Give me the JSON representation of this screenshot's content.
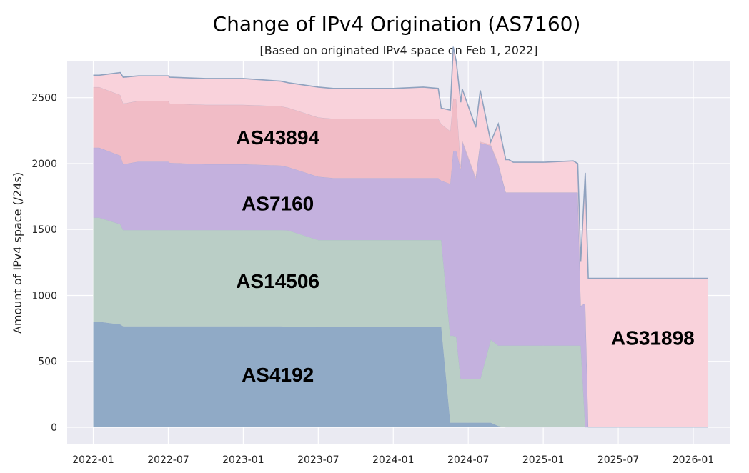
{
  "chart_data": {
    "type": "area",
    "title": "Change of IPv4 Origination (AS7160)",
    "subtitle": "[Based on originated IPv4 space on Feb 1, 2022]",
    "xlabel": "",
    "ylabel": "Amount of IPv4 space (/24s)",
    "x_ticks": [
      "2022-01",
      "2022-07",
      "2023-01",
      "2023-07",
      "2024-01",
      "2024-07",
      "2025-01",
      "2025-07",
      "2026-01"
    ],
    "y_ticks": [
      0,
      500,
      1000,
      1500,
      2000,
      2500
    ],
    "ylim": [
      -130,
      2780
    ],
    "xlim": [
      2021.826,
      2026.243
    ],
    "grid": true,
    "x": [
      2022.0,
      2022.04,
      2022.18,
      2022.2,
      2022.3,
      2022.5,
      2022.51,
      2022.75,
      2023.0,
      2023.25,
      2023.3,
      2023.5,
      2023.6,
      2023.7,
      2024.0,
      2024.2,
      2024.3,
      2024.32,
      2024.38,
      2024.4,
      2024.42,
      2024.45,
      2024.46,
      2024.55,
      2024.58,
      2024.65,
      2024.7,
      2024.75,
      2024.77,
      2024.8,
      2024.9,
      2024.95,
      2025.0,
      2025.2,
      2025.23,
      2025.25,
      2025.28,
      2025.3,
      2025.35,
      2025.37,
      2026.1
    ],
    "series": [
      {
        "name": "AS4192",
        "color": "#90aac6",
        "values": [
          800,
          800,
          780,
          765,
          765,
          765,
          765,
          765,
          765,
          765,
          763,
          760,
          760,
          760,
          760,
          760,
          760,
          760,
          35,
          35,
          35,
          35,
          35,
          35,
          35,
          35,
          10,
          0,
          0,
          0,
          0,
          0,
          0,
          0,
          0,
          0,
          0,
          0,
          0,
          0,
          0
        ]
      },
      {
        "name": "AS14506",
        "color": "#bacec6",
        "values": [
          790,
          790,
          760,
          730,
          730,
          730,
          730,
          730,
          730,
          730,
          730,
          660,
          660,
          660,
          660,
          660,
          660,
          660,
          660,
          660,
          650,
          330,
          330,
          330,
          330,
          630,
          610,
          620,
          620,
          620,
          620,
          620,
          620,
          620,
          620,
          620,
          0,
          0,
          0,
          0,
          0
        ]
      },
      {
        "name": "AS7160",
        "color": "#c4b1de",
        "values": [
          530,
          530,
          520,
          500,
          520,
          520,
          510,
          500,
          500,
          490,
          480,
          480,
          470,
          470,
          470,
          470,
          470,
          450,
          1150,
          1400,
          1410,
          1590,
          1800,
          1520,
          1790,
          1470,
          1370,
          1160,
          1160,
          1160,
          1160,
          1160,
          1160,
          1160,
          1160,
          300,
          940,
          0,
          0,
          0,
          0
        ]
      },
      {
        "name": "AS43894",
        "color": "#f1bcc6",
        "values": [
          460,
          460,
          460,
          460,
          460,
          460,
          450,
          450,
          450,
          450,
          450,
          450,
          450,
          450,
          450,
          450,
          450,
          430,
          400,
          400,
          390,
          20,
          10,
          10,
          10,
          10,
          10,
          0,
          0,
          0,
          0,
          0,
          0,
          0,
          0,
          0,
          0,
          0,
          0,
          0,
          0
        ]
      },
      {
        "name": "AS31898",
        "color": "#f9d2db",
        "values": [
          90,
          90,
          170,
          200,
          190,
          190,
          200,
          200,
          200,
          190,
          190,
          230,
          230,
          230,
          230,
          240,
          230,
          120,
          160,
          390,
          290,
          490,
          390,
          380,
          390,
          20,
          300,
          250,
          250,
          230,
          230,
          230,
          230,
          240,
          220,
          340,
          990,
          1130,
          1130,
          1130,
          1130
        ]
      }
    ],
    "area_labels": [
      {
        "text": "AS43894",
        "x": 2023.23,
        "y": 2200
      },
      {
        "text": "AS7160",
        "x": 2023.23,
        "y": 1700
      },
      {
        "text": "AS14506",
        "x": 2023.23,
        "y": 1110
      },
      {
        "text": "AS4192",
        "x": 2023.23,
        "y": 400
      },
      {
        "text": "AS31898",
        "x": 2025.73,
        "y": 680
      }
    ]
  }
}
